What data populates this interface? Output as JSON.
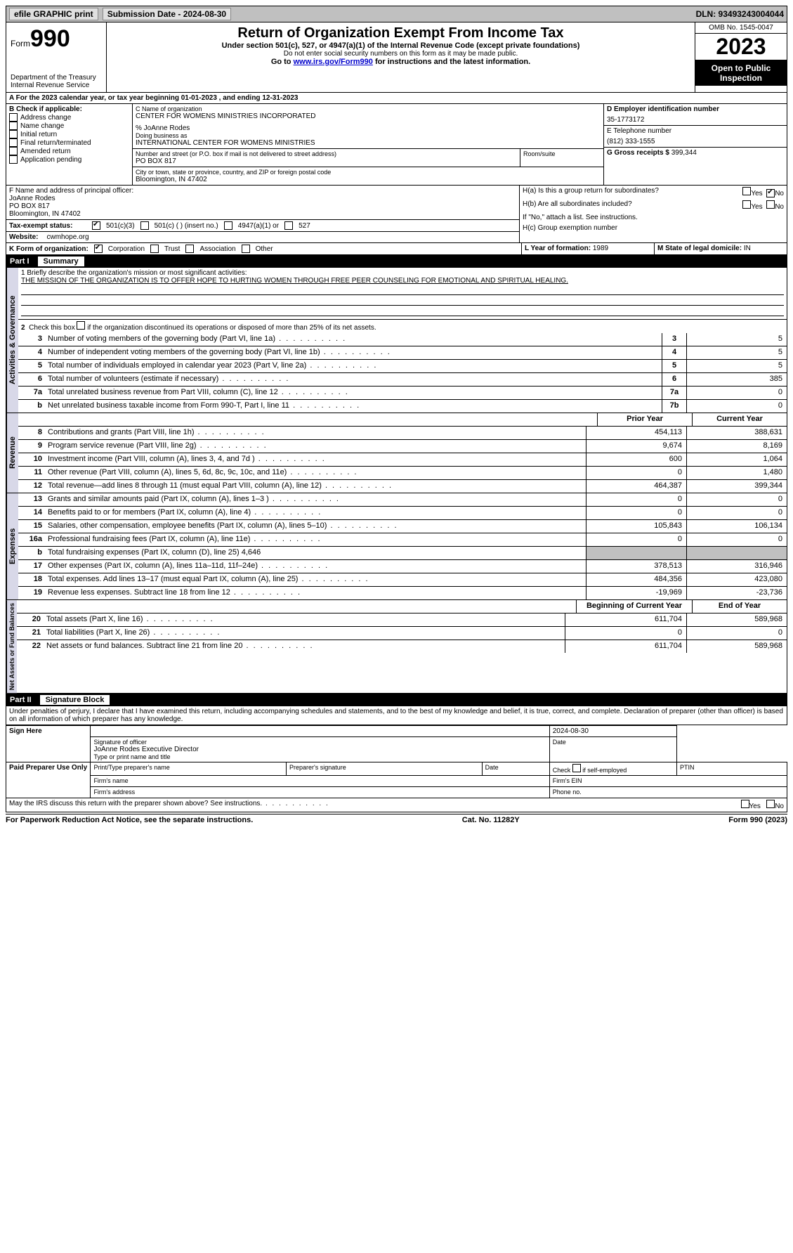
{
  "topbar": {
    "efile": "efile GRAPHIC print",
    "submission": "Submission Date - 2024-08-30",
    "dln": "DLN: 93493243004044"
  },
  "header": {
    "form_word": "Form",
    "form_num": "990",
    "dept": "Department of the Treasury Internal Revenue Service",
    "title": "Return of Organization Exempt From Income Tax",
    "sub": "Under section 501(c), 527, or 4947(a)(1) of the Internal Revenue Code (except private foundations)",
    "sub2": "Do not enter social security numbers on this form as it may be made public.",
    "goto": "Go to www.irs.gov/Form990 for instructions and the latest information.",
    "omb": "OMB No. 1545-0047",
    "year": "2023",
    "inspection": "Open to Public Inspection"
  },
  "period": {
    "line": "A For the 2023 calendar year, or tax year beginning 01-01-2023   , and ending 12-31-2023"
  },
  "blockB": {
    "title": "B Check if applicable:",
    "items": [
      "Address change",
      "Name change",
      "Initial return",
      "Final return/terminated",
      "Amended return",
      "Application pending"
    ]
  },
  "blockC": {
    "name_label": "C Name of organization",
    "name": "CENTER FOR WOMENS MINISTRIES INCORPORATED",
    "care_of": "% JoAnne Rodes",
    "dba_label": "Doing business as",
    "dba": "INTERNATIONAL CENTER FOR WOMENS MINISTRIES",
    "street_label": "Number and street (or P.O. box if mail is not delivered to street address)",
    "street": "PO BOX 817",
    "room_label": "Room/suite",
    "city_label": "City or town, state or province, country, and ZIP or foreign postal code",
    "city": "Bloomington, IN  47402"
  },
  "blockD": {
    "label": "D Employer identification number",
    "value": "35-1773172"
  },
  "blockE": {
    "label": "E Telephone number",
    "value": "(812) 333-1555"
  },
  "blockG": {
    "label": "G Gross receipts $",
    "value": "399,344"
  },
  "blockF": {
    "label": "F  Name and address of principal officer:",
    "name": "JoAnne Rodes",
    "street": "PO BOX 817",
    "city": "Bloomington, IN  47402"
  },
  "blockH": {
    "a_label": "H(a)  Is this a group return for subordinates?",
    "a_no": true,
    "b_label": "H(b)  Are all subordinates included?",
    "b_note": "If \"No,\" attach a list. See instructions.",
    "c_label": "H(c)  Group exemption number"
  },
  "blockI": {
    "label": "Tax-exempt status:",
    "opt1": "501(c)(3)",
    "opt2": "501(c) (  ) (insert no.)",
    "opt3": "4947(a)(1) or",
    "opt4": "527"
  },
  "blockJ": {
    "label": "Website:",
    "value": "cwmhope.org"
  },
  "blockK": {
    "label": "K Form of organization:",
    "opts": [
      "Corporation",
      "Trust",
      "Association",
      "Other"
    ]
  },
  "blockL": {
    "label": "L Year of formation:",
    "value": "1989"
  },
  "blockM": {
    "label": "M State of legal domicile:",
    "value": "IN"
  },
  "part1": {
    "tag": "Part I",
    "title": "Summary",
    "q1_label": "1  Briefly describe the organization's mission or most significant activities:",
    "q1_text": "THE MISSION OF THE ORGANIZATION IS TO OFFER HOPE TO HURTING WOMEN THROUGH FREE PEER COUNSELING FOR EMOTIONAL AND SPIRITUAL HEALING.",
    "q2": "2  Check this box      if the organization discontinued its operations or disposed of more than 25% of its net assets.",
    "govRows": [
      {
        "n": "3",
        "t": "Number of voting members of the governing body (Part VI, line 1a)",
        "ref": "3",
        "v": "5"
      },
      {
        "n": "4",
        "t": "Number of independent voting members of the governing body (Part VI, line 1b)",
        "ref": "4",
        "v": "5"
      },
      {
        "n": "5",
        "t": "Total number of individuals employed in calendar year 2023 (Part V, line 2a)",
        "ref": "5",
        "v": "5"
      },
      {
        "n": "6",
        "t": "Total number of volunteers (estimate if necessary)",
        "ref": "6",
        "v": "385"
      },
      {
        "n": "7a",
        "t": "Total unrelated business revenue from Part VIII, column (C), line 12",
        "ref": "7a",
        "v": "0"
      },
      {
        "n": "b",
        "t": "Net unrelated business taxable income from Form 990-T, Part I, line 11",
        "ref": "7b",
        "v": "0"
      }
    ],
    "colHeaders": {
      "prior": "Prior Year",
      "current": "Current Year"
    },
    "revenueRows": [
      {
        "n": "8",
        "t": "Contributions and grants (Part VIII, line 1h)",
        "p": "454,113",
        "c": "388,631"
      },
      {
        "n": "9",
        "t": "Program service revenue (Part VIII, line 2g)",
        "p": "9,674",
        "c": "8,169"
      },
      {
        "n": "10",
        "t": "Investment income (Part VIII, column (A), lines 3, 4, and 7d )",
        "p": "600",
        "c": "1,064"
      },
      {
        "n": "11",
        "t": "Other revenue (Part VIII, column (A), lines 5, 6d, 8c, 9c, 10c, and 11e)",
        "p": "0",
        "c": "1,480"
      },
      {
        "n": "12",
        "t": "Total revenue—add lines 8 through 11 (must equal Part VIII, column (A), line 12)",
        "p": "464,387",
        "c": "399,344"
      }
    ],
    "expenseRows": [
      {
        "n": "13",
        "t": "Grants and similar amounts paid (Part IX, column (A), lines 1–3 )",
        "p": "0",
        "c": "0"
      },
      {
        "n": "14",
        "t": "Benefits paid to or for members (Part IX, column (A), line 4)",
        "p": "0",
        "c": "0"
      },
      {
        "n": "15",
        "t": "Salaries, other compensation, employee benefits (Part IX, column (A), lines 5–10)",
        "p": "105,843",
        "c": "106,134"
      },
      {
        "n": "16a",
        "t": "Professional fundraising fees (Part IX, column (A), line 11e)",
        "p": "0",
        "c": "0"
      },
      {
        "n": "b",
        "t": "Total fundraising expenses (Part IX, column (D), line 25) 4,646",
        "shaded": true
      },
      {
        "n": "17",
        "t": "Other expenses (Part IX, column (A), lines 11a–11d, 11f–24e)",
        "p": "378,513",
        "c": "316,946"
      },
      {
        "n": "18",
        "t": "Total expenses. Add lines 13–17 (must equal Part IX, column (A), line 25)",
        "p": "484,356",
        "c": "423,080"
      },
      {
        "n": "19",
        "t": "Revenue less expenses. Subtract line 18 from line 12",
        "p": "-19,969",
        "c": "-23,736"
      }
    ],
    "netHeaders": {
      "begin": "Beginning of Current Year",
      "end": "End of Year"
    },
    "netRows": [
      {
        "n": "20",
        "t": "Total assets (Part X, line 16)",
        "p": "611,704",
        "c": "589,968"
      },
      {
        "n": "21",
        "t": "Total liabilities (Part X, line 26)",
        "p": "0",
        "c": "0"
      },
      {
        "n": "22",
        "t": "Net assets or fund balances. Subtract line 21 from line 20",
        "p": "611,704",
        "c": "589,968"
      }
    ],
    "sideLabels": {
      "gov": "Activities & Governance",
      "rev": "Revenue",
      "exp": "Expenses",
      "net": "Net Assets or Fund Balances"
    }
  },
  "part2": {
    "tag": "Part II",
    "title": "Signature Block",
    "decl": "Under penalties of perjury, I declare that I have examined this return, including accompanying schedules and statements, and to the best of my knowledge and belief, it is true, correct, and complete. Declaration of preparer (other than officer) is based on all information of which preparer has any knowledge.",
    "sign_here": "Sign Here",
    "sig_date": "2024-08-30",
    "sig_officer_label": "Signature of officer",
    "sig_date_label": "Date",
    "officer": "JoAnne Rodes  Executive Director",
    "officer_label": "Type or print name and title",
    "paid": "Paid Preparer Use Only",
    "prep_name_label": "Print/Type preparer's name",
    "prep_sig_label": "Preparer's signature",
    "date_label": "Date",
    "check_self": "Check       if self-employed",
    "ptin": "PTIN",
    "firm_name": "Firm's name",
    "firm_ein": "Firm's EIN",
    "firm_addr": "Firm's address",
    "phone": "Phone no.",
    "discuss": "May the IRS discuss this return with the preparer shown above? See instructions.",
    "yes": "Yes",
    "no": "No"
  },
  "footer": {
    "left": "For Paperwork Reduction Act Notice, see the separate instructions.",
    "mid": "Cat. No. 11282Y",
    "right": "Form 990 (2023)"
  }
}
